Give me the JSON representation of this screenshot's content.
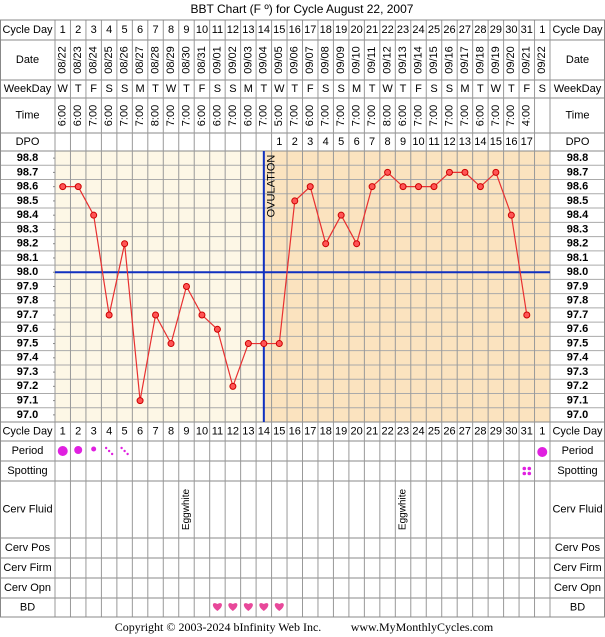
{
  "title": "BBT Chart (F º) for Cycle August 22, 2007",
  "row_labels": {
    "cycle_day": "Cycle Day",
    "date": "Date",
    "weekday": "WeekDay",
    "time": "Time",
    "dpo": "DPO",
    "period": "Period",
    "spotting": "Spotting",
    "cerv_fluid": "Cerv Fluid",
    "cerv_pos": "Cerv Pos",
    "cerv_firm": "Cerv Firm",
    "cerv_opn": "Cerv Opn",
    "bd": "BD"
  },
  "dates": [
    "08/22",
    "08/23",
    "08/24",
    "08/25",
    "08/26",
    "08/27",
    "08/28",
    "08/29",
    "08/30",
    "08/31",
    "09/01",
    "09/02",
    "09/03",
    "09/04",
    "09/05",
    "09/06",
    "09/07",
    "09/08",
    "09/09",
    "09/10",
    "09/11",
    "09/12",
    "09/13",
    "09/14",
    "09/15",
    "09/16",
    "09/17",
    "09/18",
    "09/19",
    "09/20",
    "09/21",
    "09/22"
  ],
  "weekdays": [
    "W",
    "T",
    "F",
    "S",
    "S",
    "M",
    "T",
    "W",
    "T",
    "F",
    "S",
    "S",
    "M",
    "T",
    "W",
    "T",
    "F",
    "S",
    "S",
    "M",
    "T",
    "W",
    "T",
    "F",
    "S",
    "S",
    "M",
    "T",
    "W",
    "T",
    "F",
    "S"
  ],
  "times": [
    "6:00",
    "6:00",
    "7:00",
    "6:00",
    "7:00",
    "7:00",
    "8:00",
    "7:00",
    "7:00",
    "6:00",
    "6:00",
    "7:00",
    "6:00",
    "7:00",
    "5:00",
    "7:00",
    "6:00",
    "7:00",
    "7:00",
    "7:00",
    "7:00",
    "8:00",
    "6:00",
    "7:00",
    "7:00",
    "7:00",
    "7:00",
    "6:00",
    "7:00",
    "7:00",
    "4:00",
    null
  ],
  "dpo": [
    null,
    null,
    null,
    null,
    null,
    null,
    null,
    null,
    null,
    null,
    null,
    null,
    null,
    null,
    1,
    2,
    3,
    4,
    5,
    6,
    7,
    8,
    9,
    10,
    11,
    12,
    13,
    14,
    15,
    16,
    17,
    null
  ],
  "cerv_fluid": [
    null,
    null,
    null,
    null,
    null,
    null,
    null,
    null,
    "Eggwhite",
    null,
    null,
    null,
    null,
    null,
    null,
    null,
    null,
    null,
    null,
    null,
    null,
    null,
    "Eggwhite",
    null,
    null,
    null,
    null,
    null,
    null,
    null,
    null,
    null
  ],
  "chart_data": {
    "type": "line",
    "categories": [
      1,
      2,
      3,
      4,
      5,
      6,
      7,
      8,
      9,
      10,
      11,
      12,
      13,
      14,
      15,
      16,
      17,
      18,
      19,
      20,
      21,
      22,
      23,
      24,
      25,
      26,
      27,
      28,
      29,
      30,
      31,
      1
    ],
    "values": [
      98.6,
      98.6,
      98.4,
      97.7,
      98.2,
      97.1,
      97.7,
      97.5,
      97.9,
      97.7,
      97.6,
      97.2,
      97.5,
      97.5,
      97.5,
      98.5,
      98.6,
      98.2,
      98.4,
      98.2,
      98.6,
      98.7,
      98.6,
      98.6,
      98.6,
      98.7,
      98.7,
      98.6,
      98.7,
      98.4,
      97.7,
      null
    ],
    "color": "#e83030",
    "ylim": [
      96.95,
      98.85
    ],
    "yticks": [
      98.8,
      98.7,
      98.6,
      98.5,
      98.4,
      98.3,
      98.2,
      98.1,
      {
        "value": 98,
        "label": "98.0"
      },
      97.9,
      97.8,
      97.7,
      97.6,
      97.5,
      97.4,
      97.3,
      97.2,
      97.1,
      {
        "value": 97,
        "label": "97.0"
      }
    ],
    "coverline": 98,
    "ovulation_label": "OVULATION"
  },
  "footer": {
    "copyright": "Copyright © 2003-2024 bInfinity Web Inc.",
    "site": "www.MyMonthlyCycles.com"
  }
}
